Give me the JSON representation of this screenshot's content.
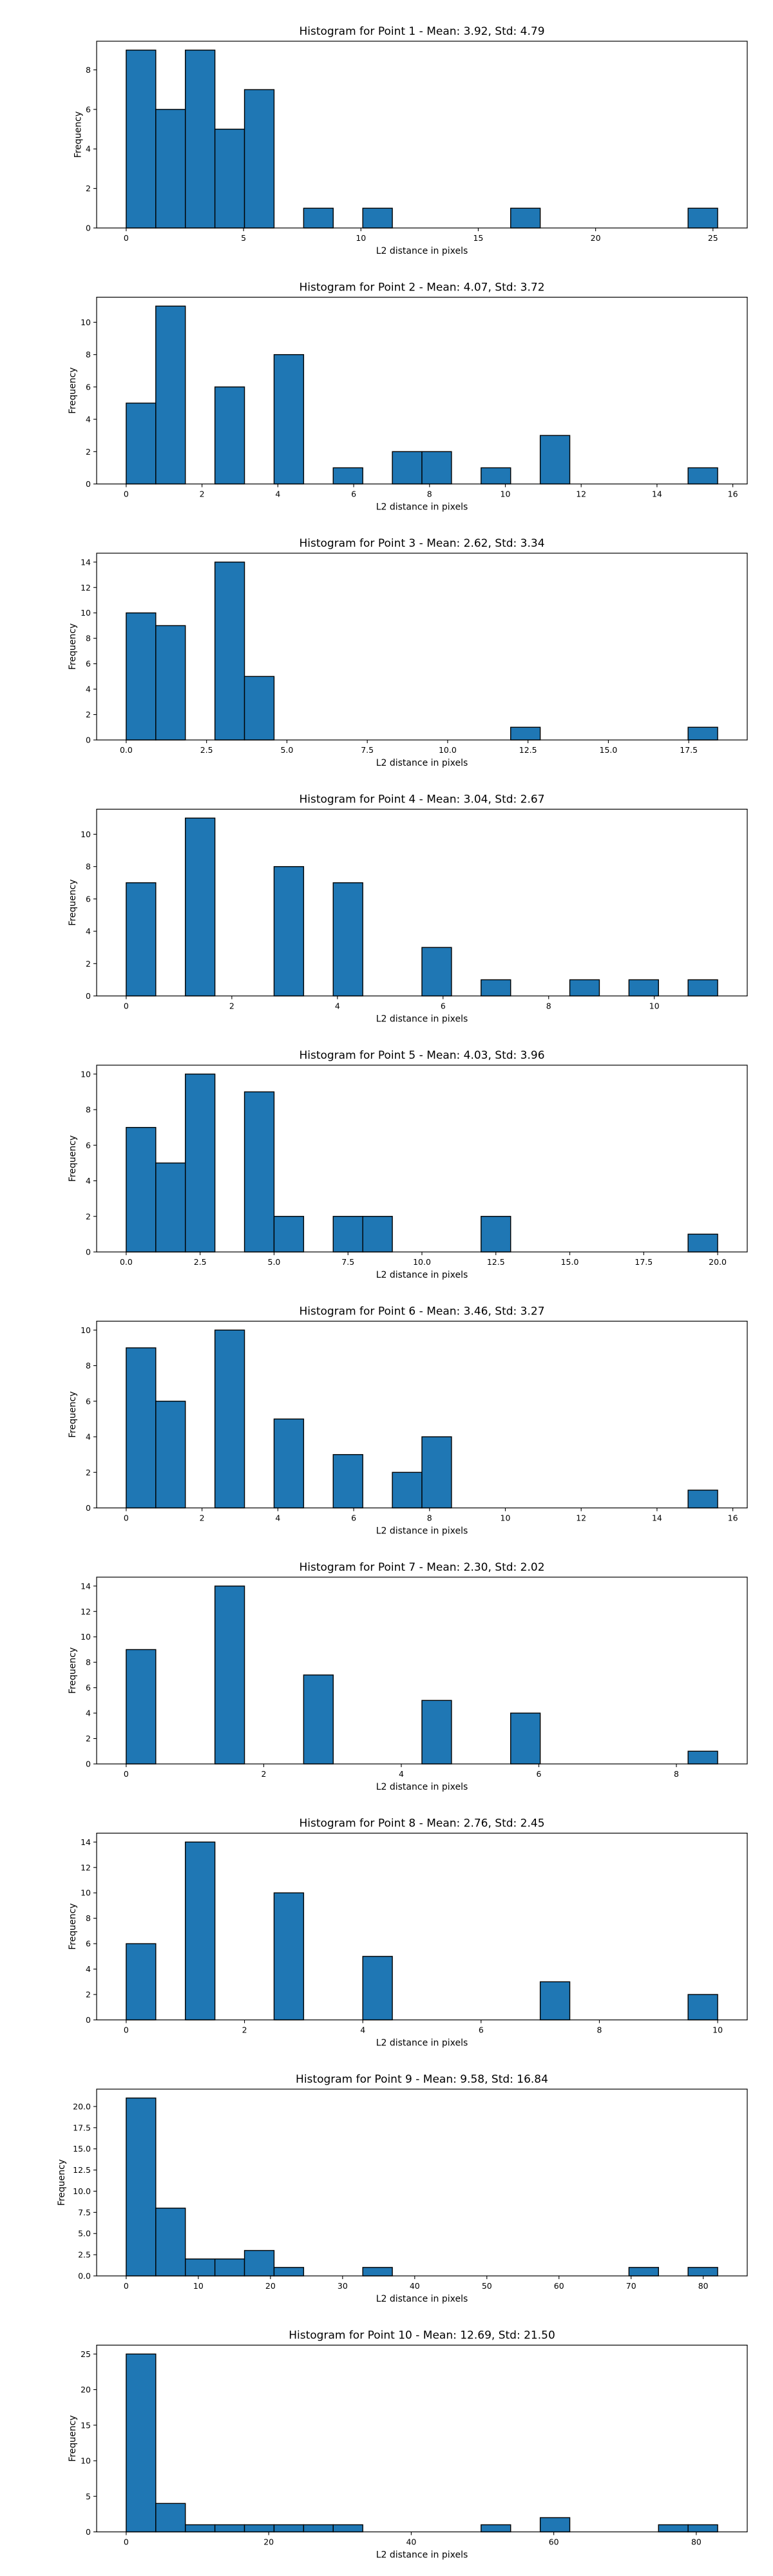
{
  "chart_data": [
    {
      "type": "bar",
      "title": "Histogram for Point 1 - Mean: 3.92, Std: 4.79",
      "xlabel": "L2 distance in pixels",
      "ylabel": "Frequency",
      "xlim": [
        -1.26,
        26.46
      ],
      "ylim": [
        0,
        9.45
      ],
      "xticks": [
        0,
        5,
        10,
        15,
        20,
        25
      ],
      "xtick_labels": [
        "0",
        "5",
        "10",
        "15",
        "20",
        "25"
      ],
      "yticks": [
        0,
        2,
        4,
        6,
        8
      ],
      "ytick_labels": [
        "0",
        "2",
        "4",
        "6",
        "8"
      ],
      "bin_edges": [
        0,
        1.26,
        2.52,
        3.78,
        5.04,
        6.3,
        7.56,
        8.82,
        10.08,
        11.34,
        12.6,
        13.86,
        15.12,
        16.38,
        17.64,
        18.9,
        20.16,
        21.42,
        22.68,
        23.94,
        25.2
      ],
      "counts": [
        9,
        6,
        9,
        5,
        7,
        0,
        1,
        0,
        1,
        0,
        0,
        0,
        0,
        1,
        0,
        0,
        0,
        0,
        0,
        1
      ]
    },
    {
      "type": "bar",
      "title": "Histogram for Point 2 - Mean: 4.07, Std: 3.72",
      "xlabel": "L2 distance in pixels",
      "ylabel": "Frequency",
      "xlim": [
        -0.78,
        16.38
      ],
      "ylim": [
        0,
        11.55
      ],
      "xticks": [
        0,
        2,
        4,
        6,
        8,
        10,
        12,
        14,
        16
      ],
      "xtick_labels": [
        "0",
        "2",
        "4",
        "6",
        "8",
        "10",
        "12",
        "14",
        "16"
      ],
      "yticks": [
        0,
        2,
        4,
        6,
        8,
        10
      ],
      "ytick_labels": [
        "0",
        "2",
        "4",
        "6",
        "8",
        "10"
      ],
      "bin_edges": [
        0,
        0.78,
        1.56,
        2.34,
        3.12,
        3.9,
        4.68,
        5.46,
        6.24,
        7.02,
        7.8,
        8.58,
        9.36,
        10.14,
        10.92,
        11.7,
        12.48,
        13.26,
        14.04,
        14.82,
        15.6
      ],
      "counts": [
        5,
        11,
        0,
        6,
        0,
        8,
        0,
        1,
        0,
        2,
        2,
        0,
        1,
        0,
        3,
        0,
        0,
        0,
        0,
        1
      ]
    },
    {
      "type": "bar",
      "title": "Histogram for Point 3 - Mean: 2.62, Std: 3.34",
      "xlabel": "L2 distance in pixels",
      "ylabel": "Frequency",
      "xlim": [
        -0.92,
        19.32
      ],
      "ylim": [
        0,
        14.7
      ],
      "xticks": [
        0,
        2.5,
        5,
        7.5,
        10,
        12.5,
        15,
        17.5
      ],
      "xtick_labels": [
        "0.0",
        "2.5",
        "5.0",
        "7.5",
        "10.0",
        "12.5",
        "15.0",
        "17.5"
      ],
      "yticks": [
        0,
        2,
        4,
        6,
        8,
        10,
        12,
        14
      ],
      "ytick_labels": [
        "0",
        "2",
        "4",
        "6",
        "8",
        "10",
        "12",
        "14"
      ],
      "bin_edges": [
        0,
        0.92,
        1.84,
        2.76,
        3.68,
        4.6,
        5.52,
        6.44,
        7.36,
        8.28,
        9.2,
        10.12,
        11.04,
        11.96,
        12.88,
        13.8,
        14.72,
        15.64,
        16.56,
        17.48,
        18.4
      ],
      "counts": [
        10,
        9,
        0,
        14,
        5,
        0,
        0,
        0,
        0,
        0,
        0,
        0,
        0,
        1,
        0,
        0,
        0,
        0,
        0,
        1
      ]
    },
    {
      "type": "bar",
      "title": "Histogram for Point 4 - Mean: 3.04, Std: 2.67",
      "xlabel": "L2 distance in pixels",
      "ylabel": "Frequency",
      "xlim": [
        -0.56,
        11.76
      ],
      "ylim": [
        0,
        11.55
      ],
      "xticks": [
        0,
        2,
        4,
        6,
        8,
        10
      ],
      "xtick_labels": [
        "0",
        "2",
        "4",
        "6",
        "8",
        "10"
      ],
      "yticks": [
        0,
        2,
        4,
        6,
        8,
        10
      ],
      "ytick_labels": [
        "0",
        "2",
        "4",
        "6",
        "8",
        "10"
      ],
      "bin_edges": [
        0,
        0.56,
        1.12,
        1.68,
        2.24,
        2.8,
        3.36,
        3.92,
        4.48,
        5.04,
        5.6,
        6.16,
        6.72,
        7.28,
        7.84,
        8.4,
        8.96,
        9.52,
        10.08,
        10.64,
        11.2
      ],
      "counts": [
        7,
        0,
        11,
        0,
        0,
        8,
        0,
        7,
        0,
        0,
        3,
        0,
        1,
        0,
        0,
        1,
        0,
        1,
        0,
        1
      ]
    },
    {
      "type": "bar",
      "title": "Histogram for Point 5 - Mean: 4.03, Std: 3.96",
      "xlabel": "L2 distance in pixels",
      "ylabel": "Frequency",
      "xlim": [
        -1.0,
        21.0
      ],
      "ylim": [
        0,
        10.5
      ],
      "xticks": [
        0,
        2.5,
        5,
        7.5,
        10,
        12.5,
        15,
        17.5,
        20
      ],
      "xtick_labels": [
        "0.0",
        "2.5",
        "5.0",
        "7.5",
        "10.0",
        "12.5",
        "15.0",
        "17.5",
        "20.0"
      ],
      "yticks": [
        0,
        2,
        4,
        6,
        8,
        10
      ],
      "ytick_labels": [
        "0",
        "2",
        "4",
        "6",
        "8",
        "10"
      ],
      "bin_edges": [
        0,
        1,
        2,
        3,
        4,
        5,
        6,
        7,
        8,
        9,
        10,
        11,
        12,
        13,
        14,
        15,
        16,
        17,
        18,
        19,
        20
      ],
      "counts": [
        7,
        5,
        10,
        0,
        9,
        2,
        0,
        2,
        2,
        0,
        0,
        0,
        2,
        0,
        0,
        0,
        0,
        0,
        0,
        1
      ]
    },
    {
      "type": "bar",
      "title": "Histogram for Point 6 - Mean: 3.46, Std: 3.27",
      "xlabel": "L2 distance in pixels",
      "ylabel": "Frequency",
      "xlim": [
        -0.78,
        16.38
      ],
      "ylim": [
        0,
        10.5
      ],
      "xticks": [
        0,
        2,
        4,
        6,
        8,
        10,
        12,
        14,
        16
      ],
      "xtick_labels": [
        "0",
        "2",
        "4",
        "6",
        "8",
        "10",
        "12",
        "14",
        "16"
      ],
      "yticks": [
        0,
        2,
        4,
        6,
        8,
        10
      ],
      "ytick_labels": [
        "0",
        "2",
        "4",
        "6",
        "8",
        "10"
      ],
      "bin_edges": [
        0,
        0.78,
        1.56,
        2.34,
        3.12,
        3.9,
        4.68,
        5.46,
        6.24,
        7.02,
        7.8,
        8.58,
        9.36,
        10.14,
        10.92,
        11.7,
        12.48,
        13.26,
        14.04,
        14.82,
        15.6
      ],
      "counts": [
        9,
        6,
        0,
        10,
        0,
        5,
        0,
        3,
        0,
        2,
        4,
        0,
        0,
        0,
        0,
        0,
        0,
        0,
        0,
        1
      ]
    },
    {
      "type": "bar",
      "title": "Histogram for Point 7 - Mean: 2.30, Std: 2.02",
      "xlabel": "L2 distance in pixels",
      "ylabel": "Frequency",
      "xlim": [
        -0.43,
        9.03
      ],
      "ylim": [
        0,
        14.7
      ],
      "xticks": [
        0,
        2,
        4,
        6,
        8
      ],
      "xtick_labels": [
        "0",
        "2",
        "4",
        "6",
        "8"
      ],
      "yticks": [
        0,
        2,
        4,
        6,
        8,
        10,
        12,
        14
      ],
      "ytick_labels": [
        "0",
        "2",
        "4",
        "6",
        "8",
        "10",
        "12",
        "14"
      ],
      "bin_edges": [
        0,
        0.43,
        0.86,
        1.29,
        1.72,
        2.15,
        2.58,
        3.01,
        3.44,
        3.87,
        4.3,
        4.73,
        5.16,
        5.59,
        6.02,
        6.45,
        6.88,
        7.31,
        7.74,
        8.17,
        8.6
      ],
      "counts": [
        9,
        0,
        0,
        14,
        0,
        0,
        7,
        0,
        0,
        0,
        5,
        0,
        0,
        4,
        0,
        0,
        0,
        0,
        0,
        1
      ]
    },
    {
      "type": "bar",
      "title": "Histogram for Point 8 - Mean: 2.76, Std: 2.45",
      "xlabel": "L2 distance in pixels",
      "ylabel": "Frequency",
      "xlim": [
        -0.5,
        10.5
      ],
      "ylim": [
        0,
        14.7
      ],
      "xticks": [
        0,
        2,
        4,
        6,
        8,
        10
      ],
      "xtick_labels": [
        "0",
        "2",
        "4",
        "6",
        "8",
        "10"
      ],
      "yticks": [
        0,
        2,
        4,
        6,
        8,
        10,
        12,
        14
      ],
      "ytick_labels": [
        "0",
        "2",
        "4",
        "6",
        "8",
        "10",
        "12",
        "14"
      ],
      "bin_edges": [
        0,
        0.5,
        1,
        1.5,
        2,
        2.5,
        3,
        3.5,
        4,
        4.5,
        5,
        5.5,
        6,
        6.5,
        7,
        7.5,
        8,
        8.5,
        9,
        9.5,
        10
      ],
      "counts": [
        6,
        0,
        14,
        0,
        0,
        10,
        0,
        0,
        5,
        0,
        0,
        0,
        0,
        0,
        3,
        0,
        0,
        0,
        0,
        2
      ]
    },
    {
      "type": "bar",
      "title": "Histogram for Point 9 - Mean: 9.58, Std: 16.84",
      "xlabel": "L2 distance in pixels",
      "ylabel": "Frequency",
      "xlim": [
        -4.1,
        86.1
      ],
      "ylim": [
        0,
        22.05
      ],
      "xticks": [
        0,
        10,
        20,
        30,
        40,
        50,
        60,
        70,
        80
      ],
      "xtick_labels": [
        "0",
        "10",
        "20",
        "30",
        "40",
        "50",
        "60",
        "70",
        "80"
      ],
      "yticks": [
        0,
        2.5,
        5,
        7.5,
        10,
        12.5,
        15,
        17.5,
        20
      ],
      "ytick_labels": [
        "0.0",
        "2.5",
        "5.0",
        "7.5",
        "10.0",
        "12.5",
        "15.0",
        "17.5",
        "20.0"
      ],
      "bin_edges": [
        0,
        4.1,
        8.2,
        12.3,
        16.4,
        20.5,
        24.6,
        28.7,
        32.8,
        36.9,
        41,
        45.1,
        49.2,
        53.3,
        57.4,
        61.5,
        65.6,
        69.7,
        73.8,
        77.9,
        82
      ],
      "counts": [
        21,
        8,
        2,
        2,
        3,
        1,
        0,
        0,
        1,
        0,
        0,
        0,
        0,
        0,
        0,
        0,
        0,
        1,
        0,
        1
      ]
    },
    {
      "type": "bar",
      "title": "Histogram for Point 10 - Mean: 12.69, Std: 21.50",
      "xlabel": "L2 distance in pixels",
      "ylabel": "Frequency",
      "xlim": [
        -4.15,
        87.15
      ],
      "ylim": [
        0,
        26.25
      ],
      "xticks": [
        0,
        20,
        40,
        60,
        80
      ],
      "xtick_labels": [
        "0",
        "20",
        "40",
        "60",
        "80"
      ],
      "yticks": [
        0,
        5,
        10,
        15,
        20,
        25
      ],
      "ytick_labels": [
        "0",
        "5",
        "10",
        "15",
        "20",
        "25"
      ],
      "bin_edges": [
        0,
        4.15,
        8.3,
        12.45,
        16.6,
        20.75,
        24.9,
        29.05,
        33.2,
        37.35,
        41.5,
        45.65,
        49.8,
        53.95,
        58.1,
        62.25,
        66.4,
        70.55,
        74.7,
        78.85,
        83
      ],
      "counts": [
        25,
        4,
        1,
        1,
        1,
        1,
        1,
        1,
        0,
        0,
        0,
        0,
        1,
        0,
        2,
        0,
        0,
        0,
        1,
        1
      ]
    }
  ]
}
